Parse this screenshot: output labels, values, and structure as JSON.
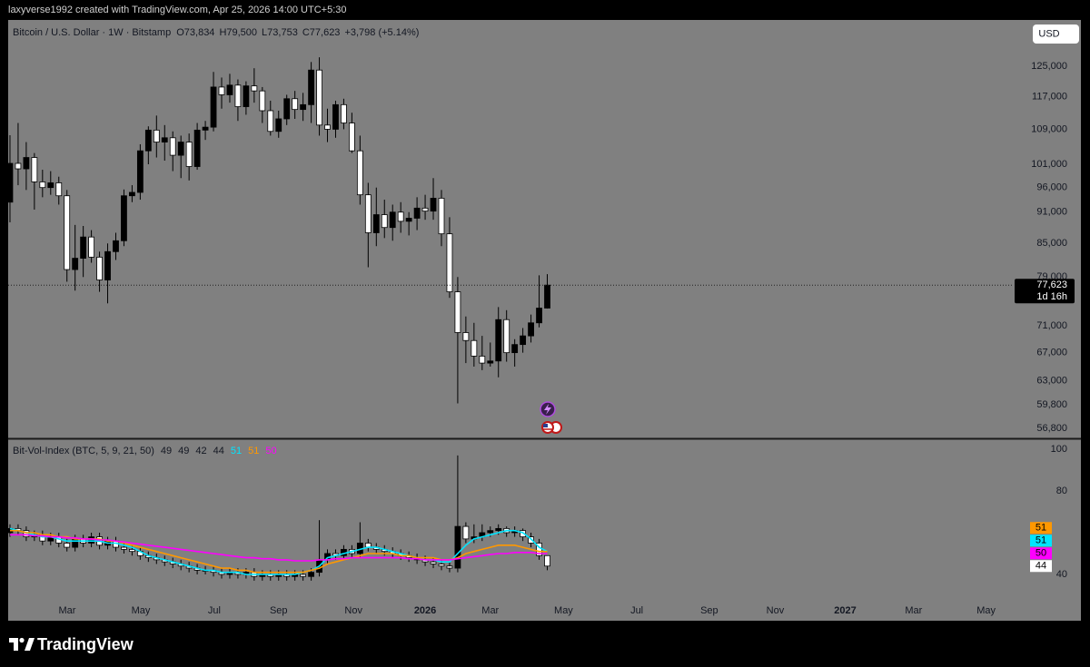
{
  "page": {
    "attribution": "laxyverse1992 created with TradingView.com, Apr 25, 2026 14:00 UTC+5:30",
    "currency_button": "USD",
    "logo": "TradingView"
  },
  "chart_data": [
    {
      "type": "candlestick",
      "title": "Bitcoin / U.S. Dollar · 1W · Bitstamp",
      "ohlc_legend": [
        {
          "label": "O",
          "value": "73,834"
        },
        {
          "label": "H",
          "value": "79,500"
        },
        {
          "label": "L",
          "value": "73,753"
        },
        {
          "label": "C",
          "value": "77,623"
        }
      ],
      "change_label": "+3,798 (+5.14%)",
      "last_price_label": "77,623",
      "countdown": "1d 16h",
      "log_scale": true,
      "ylim": [
        55600,
        138300
      ],
      "yticks": [
        {
          "value": 125000,
          "label": "125,000"
        },
        {
          "value": 117000,
          "label": "117,000"
        },
        {
          "value": 109000,
          "label": "109,000"
        },
        {
          "value": 101000,
          "label": "101,000"
        },
        {
          "value": 96000,
          "label": "96,000"
        },
        {
          "value": 91000,
          "label": "91,000"
        },
        {
          "value": 85000,
          "label": "85,000"
        },
        {
          "value": 79000,
          "label": "79,000"
        },
        {
          "value": 71000,
          "label": "71,000"
        },
        {
          "value": 67000,
          "label": "67,000"
        },
        {
          "value": 63000,
          "label": "63,000"
        },
        {
          "value": 59800,
          "label": "59,800"
        },
        {
          "value": 56800,
          "label": "56,800"
        }
      ],
      "xlim": [
        -0.22,
        122.4
      ],
      "up_color": "#000000",
      "down_color": "#ffffff",
      "open": [
        93000,
        101200,
        100000,
        102500,
        97200,
        96000,
        97000,
        94300,
        80300,
        82300,
        86200,
        82500,
        78500,
        83500,
        85500,
        94300,
        95000,
        104000,
        108800,
        106000,
        107000,
        103000,
        106000,
        100500,
        108800,
        109500,
        119500,
        117500,
        120000,
        114500,
        119800,
        118500,
        113500,
        108500,
        111500,
        116500,
        113800,
        115000,
        124000,
        110000,
        109000,
        115000,
        110500,
        104000,
        94500,
        87000,
        90500,
        88000,
        91000,
        89200,
        89800,
        91800,
        91200,
        93800,
        86800,
        76500,
        70000,
        68800,
        66500,
        65500,
        65800,
        72000,
        67000,
        68200,
        69500,
        71500,
        73834
      ],
      "high": [
        107600,
        110500,
        106000,
        103500,
        99800,
        99500,
        98300,
        95500,
        88500,
        88300,
        87500,
        83500,
        85000,
        87000,
        95600,
        96500,
        105500,
        109700,
        112300,
        110000,
        108500,
        107500,
        108000,
        110500,
        111000,
        123500,
        122000,
        123000,
        121500,
        121000,
        124500,
        119500,
        116000,
        113500,
        117500,
        118500,
        118000,
        126200,
        127500,
        114000,
        116000,
        116500,
        113000,
        107500,
        97000,
        96000,
        93500,
        92500,
        93000,
        91000,
        94000,
        94500,
        98000,
        95500,
        90000,
        79000,
        72500,
        71500,
        69500,
        68500,
        74000,
        73500,
        69000,
        70700,
        72800,
        79300,
        79500
      ],
      "low": [
        89000,
        96500,
        95500,
        91500,
        94000,
        94500,
        92500,
        78200,
        76700,
        79000,
        81500,
        76500,
        74600,
        82000,
        84500,
        93000,
        93500,
        101000,
        102500,
        101800,
        99500,
        98000,
        97500,
        99800,
        106500,
        108500,
        114000,
        115500,
        111000,
        112500,
        115500,
        110500,
        107500,
        107000,
        110000,
        111500,
        111000,
        110500,
        107500,
        106000,
        107000,
        109000,
        103500,
        92500,
        80700,
        84500,
        86000,
        85500,
        87000,
        86500,
        87500,
        89500,
        89500,
        84500,
        75500,
        60000,
        65500,
        65000,
        64500,
        65000,
        63500,
        65700,
        65000,
        67000,
        68500,
        70800,
        73753
      ],
      "close": [
        101200,
        100000,
        102500,
        97200,
        96000,
        97000,
        94300,
        80300,
        82300,
        86200,
        82500,
        78500,
        83500,
        85500,
        94300,
        95000,
        104000,
        108800,
        106000,
        107000,
        103000,
        106000,
        100500,
        108800,
        109500,
        119500,
        117500,
        120000,
        114500,
        119800,
        118500,
        113500,
        108500,
        111500,
        116500,
        113800,
        115000,
        124000,
        110000,
        109000,
        115000,
        110500,
        104000,
        94500,
        87000,
        90500,
        88000,
        91000,
        89200,
        89800,
        91800,
        91200,
        93800,
        86800,
        76500,
        70000,
        68800,
        66500,
        65500,
        65800,
        72000,
        67000,
        68200,
        69500,
        71500,
        73834,
        77623
      ]
    },
    {
      "type": "candlestick",
      "title": "Bit-Vol-Index (BTC, 5, 9, 21, 50)",
      "ylim": [
        27.8,
        104.8
      ],
      "yticks": [
        40,
        80,
        100
      ],
      "xlim": [
        -0.22,
        122.4
      ],
      "xticks": [
        {
          "value": 7.03,
          "label": "Mar"
        },
        {
          "value": 16.07,
          "label": "May"
        },
        {
          "value": 25.1,
          "label": "Jul"
        },
        {
          "value": 33.0,
          "label": "Sep"
        },
        {
          "value": 42.2,
          "label": "Nov"
        },
        {
          "value": 51.0,
          "label": "2026"
        },
        {
          "value": 59.0,
          "label": "Mar"
        },
        {
          "value": 68.0,
          "label": "May"
        },
        {
          "value": 77.0,
          "label": "Jul"
        },
        {
          "value": 85.9,
          "label": "Sep"
        },
        {
          "value": 94.0,
          "label": "Nov"
        },
        {
          "value": 102.6,
          "label": "2027"
        },
        {
          "value": 111.0,
          "label": "Mar"
        },
        {
          "value": 119.9,
          "label": "May"
        }
      ],
      "up_color": "#000000",
      "down_color": "#ffffff",
      "open": [
        60,
        62,
        61,
        58,
        59,
        56,
        58,
        55,
        53,
        57,
        55,
        58,
        54,
        56,
        53,
        52,
        51,
        49,
        48,
        47,
        46,
        45,
        44,
        43,
        42,
        42,
        41,
        40,
        41,
        40,
        41,
        39,
        40,
        39,
        40,
        39,
        40,
        39,
        41,
        47,
        50,
        49,
        52,
        50,
        55,
        53,
        52,
        51,
        50,
        49,
        48,
        47,
        46,
        45,
        44,
        43,
        63,
        57,
        58,
        60,
        61,
        62,
        60,
        61,
        58,
        55,
        49
      ],
      "high": [
        64,
        64,
        63,
        61,
        61,
        60,
        60,
        57,
        59,
        59,
        60,
        60,
        58,
        58,
        55,
        54,
        53,
        51,
        50,
        49,
        48,
        47,
        46,
        45,
        44,
        44,
        43,
        43,
        43,
        43,
        43,
        42,
        42,
        42,
        42,
        42,
        42,
        43,
        66,
        52,
        52,
        54,
        54,
        65,
        57,
        55,
        54,
        53,
        52,
        51,
        50,
        49,
        48,
        47,
        46,
        97,
        65,
        64,
        64,
        63,
        64,
        63,
        63,
        62,
        60,
        57,
        49
      ],
      "low": [
        58,
        59,
        56,
        56,
        54,
        54,
        53,
        51,
        51,
        53,
        53,
        52,
        52,
        51,
        50,
        49,
        47,
        46,
        45,
        44,
        43,
        42,
        41,
        40,
        40,
        39,
        38,
        38,
        38,
        38,
        37,
        37,
        37,
        37,
        37,
        37,
        37,
        37,
        39,
        45,
        47,
        47,
        48,
        48,
        51,
        50,
        49,
        48,
        47,
        46,
        45,
        44,
        43,
        42,
        41,
        41,
        55,
        55,
        56,
        58,
        59,
        58,
        58,
        56,
        53,
        47,
        42
      ],
      "close": [
        62,
        61,
        58,
        59,
        56,
        58,
        55,
        53,
        57,
        55,
        58,
        54,
        56,
        53,
        52,
        51,
        49,
        48,
        47,
        46,
        45,
        44,
        43,
        42,
        42,
        41,
        40,
        41,
        40,
        41,
        39,
        40,
        39,
        40,
        39,
        40,
        39,
        41,
        47,
        50,
        49,
        52,
        50,
        55,
        53,
        52,
        51,
        50,
        49,
        48,
        47,
        46,
        45,
        44,
        43,
        63,
        57,
        58,
        60,
        61,
        62,
        60,
        61,
        58,
        55,
        49,
        44
      ],
      "series": [
        {
          "color": "#00e5ff",
          "values": [
            62,
            61,
            60,
            59,
            58,
            58,
            57,
            56,
            56,
            56,
            56,
            56,
            55,
            55,
            54,
            53,
            51,
            49,
            48,
            47,
            46,
            45,
            44,
            43,
            42,
            42,
            41,
            41,
            41,
            40,
            40,
            40,
            40,
            40,
            40,
            40,
            41,
            42,
            44,
            48,
            49,
            50,
            51,
            52,
            53,
            53,
            52,
            51,
            50,
            49,
            48,
            47,
            47,
            46,
            46,
            50,
            54,
            57,
            58,
            59,
            60,
            61,
            61,
            60,
            57,
            53,
            51
          ]
        },
        {
          "color": "#ff9800",
          "values": [
            61,
            61,
            60,
            60,
            59,
            59,
            58,
            58,
            57,
            57,
            57,
            57,
            56,
            56,
            55,
            54,
            53,
            52,
            51,
            50,
            49,
            48,
            47,
            46,
            45,
            44,
            43,
            43,
            42,
            42,
            41,
            41,
            41,
            41,
            41,
            41,
            41,
            42,
            43,
            45,
            46,
            47,
            48,
            49,
            50,
            50,
            50,
            50,
            49,
            49,
            48,
            48,
            48,
            47,
            47,
            48,
            50,
            51,
            52,
            53,
            54,
            54,
            54,
            53,
            52,
            51,
            51
          ]
        },
        {
          "color": "#ff00ff",
          "values": [
            59,
            59,
            59,
            58.5,
            58.5,
            58,
            58,
            57.5,
            57.5,
            57,
            57,
            56.5,
            56.5,
            56,
            55.5,
            55,
            54.5,
            54,
            53.5,
            53,
            52.5,
            52,
            51.5,
            51,
            50.5,
            50,
            49.5,
            49,
            48.5,
            48,
            48,
            47.5,
            47.5,
            47,
            47,
            46.5,
            46.5,
            46.5,
            47,
            47,
            47.5,
            47.5,
            48,
            48,
            48,
            48,
            48,
            48,
            48,
            47.5,
            47.5,
            47,
            47,
            47,
            47,
            47.5,
            48,
            48.5,
            49,
            49.5,
            50,
            50,
            50.5,
            50.5,
            50.5,
            50,
            50
          ]
        }
      ]
    }
  ]
}
